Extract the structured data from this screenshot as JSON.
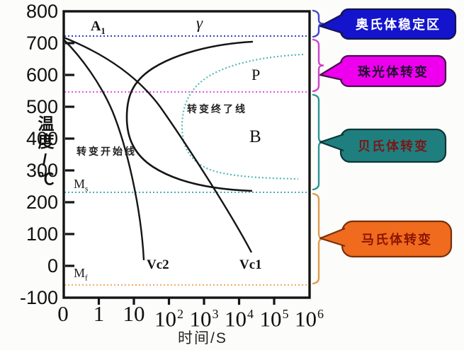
{
  "chart": {
    "y_axis": {
      "label": "温度/℃",
      "ticks": [
        "800",
        "700",
        "600",
        "500",
        "400",
        "300",
        "200",
        "100",
        "0",
        "-100"
      ]
    },
    "x_axis": {
      "label": "时间/S",
      "ticks": [
        {
          "base": "0",
          "sup": ""
        },
        {
          "base": "1",
          "sup": ""
        },
        {
          "base": "10",
          "sup": ""
        },
        {
          "base": "10",
          "sup": "2"
        },
        {
          "base": "10",
          "sup": "3"
        },
        {
          "base": "10",
          "sup": "4"
        },
        {
          "base": "10",
          "sup": "5"
        },
        {
          "base": "10",
          "sup": "6"
        }
      ]
    },
    "region_labels": {
      "a1": {
        "main": "A",
        "sub": "1"
      },
      "gamma": "γ",
      "p": "P",
      "b": "B",
      "ms": {
        "main": "M",
        "sub": "s"
      },
      "mf": {
        "main": "M",
        "sub": "f"
      },
      "vc1": "Vc1",
      "vc2": "Vc2",
      "start_line": "转变开始线",
      "end_line": "转变终了线"
    }
  },
  "callouts": [
    {
      "label": "奥氏体稳定区",
      "bg": "#1414cc",
      "border": "#141450",
      "text_color": "#ffffff",
      "brace_color": "#4444cc"
    },
    {
      "label": "珠光体转变",
      "bg": "#ee00ee",
      "border": "#46104a",
      "text_color": "#221030",
      "brace_color": "#cc44cc"
    },
    {
      "label": "贝氏体转变",
      "bg": "#1f7f7f",
      "border": "#0d3535",
      "text_color": "#7a1818",
      "brace_color": "#2a9595"
    },
    {
      "label": "马氏体转变",
      "bg": "#f06b1e",
      "border": "#77300a",
      "text_color": "#8b1500",
      "brace_color": "#e09a4e"
    }
  ],
  "chart_data": {
    "type": "line",
    "xlabel": "时间/S",
    "ylabel": "温度/℃",
    "x_scale": "log",
    "x_ticks": [
      "0",
      "1",
      "10",
      "10^2",
      "10^3",
      "10^4",
      "10^5",
      "10^6"
    ],
    "ylim": [
      -100,
      800
    ],
    "grid": false,
    "reference_lines": [
      {
        "name": "A1",
        "temp_c": 723,
        "style": "dotted",
        "color": "#3d3dc8"
      },
      {
        "name": "550C",
        "temp_c": 550,
        "style": "dotted",
        "color": "#e055e0"
      },
      {
        "name": "Ms",
        "temp_c": 232,
        "style": "dotted",
        "color": "#4fa8c0"
      },
      {
        "name": "Mf",
        "temp_c": -60,
        "style": "dotted",
        "color": "#eeab66"
      }
    ],
    "series": [
      {
        "name": "转变开始线",
        "shape": "C-curve",
        "style": "solid",
        "color": "#151515",
        "points_time_s_temp_c": [
          [
            25000,
            704
          ],
          [
            1700,
            693
          ],
          [
            70,
            642
          ],
          [
            6,
            469
          ],
          [
            70,
            291
          ],
          [
            1100,
            253
          ],
          [
            24000,
            236
          ]
        ]
      },
      {
        "name": "转变终了线",
        "shape": "C-curve",
        "style": "dotted",
        "color": "#55b8b8",
        "points_time_s_temp_c": [
          [
            680000,
            664
          ],
          [
            2200,
            613
          ],
          [
            240,
            440
          ],
          [
            1500,
            302
          ],
          [
            500000,
            273
          ]
        ]
      },
      {
        "name": "Vc1",
        "shape": "cooling-curve",
        "style": "solid",
        "color": "#151515",
        "points_time_s_temp_c": [
          [
            0,
            715
          ],
          [
            1,
            676
          ],
          [
            10,
            611
          ],
          [
            100,
            458
          ],
          [
            1000,
            302
          ],
          [
            10000,
            124
          ],
          [
            23000,
            42
          ]
        ]
      },
      {
        "name": "Vc2",
        "shape": "cooling-curve",
        "style": "solid",
        "color": "#151515",
        "points_time_s_temp_c": [
          [
            0,
            710
          ],
          [
            1,
            584
          ],
          [
            3.5,
            453
          ],
          [
            10,
            269
          ],
          [
            19,
            18
          ]
        ]
      }
    ],
    "phase_regions": [
      {
        "label": "γ"
      },
      {
        "label": "P"
      },
      {
        "label": "B"
      }
    ],
    "temperature_zones": [
      {
        "label": "奥氏体稳定区",
        "from_c": 723,
        "to_c": 800
      },
      {
        "label": "珠光体转变",
        "from_c": 550,
        "to_c": 723
      },
      {
        "label": "贝氏体转变",
        "from_c": 232,
        "to_c": 550
      },
      {
        "label": "马氏体转变",
        "from_c": -60,
        "to_c": 232
      }
    ]
  }
}
